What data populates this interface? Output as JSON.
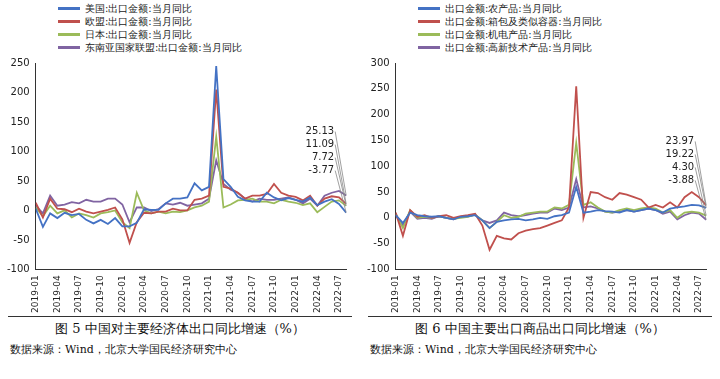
{
  "chart_data": [
    {
      "type": "line",
      "title": "图 5  中国对主要经济体出口同比增速（%）",
      "subtitle": "数据来源：Wind，北京大学国民经济研究中心",
      "categories": [
        "2019-01",
        null,
        null,
        "2019-04",
        null,
        null,
        "2019-07",
        null,
        null,
        "2019-10",
        null,
        null,
        "2020-01",
        null,
        null,
        "2020-04",
        null,
        null,
        "2020-07",
        null,
        null,
        "2020-10",
        null,
        null,
        "2021-01",
        null,
        null,
        "2021-04",
        null,
        null,
        "2021-07",
        null,
        null,
        "2021-10",
        null,
        null,
        "2022-01",
        null,
        null,
        "2022-04",
        null,
        null,
        "2022-07",
        null
      ],
      "series": [
        {
          "name": "美国:出口金额:当月同比",
          "color": "#4472C4",
          "values": [
            3,
            -28,
            -5,
            -13,
            -4,
            -8,
            -6,
            -16,
            -22,
            -16,
            -23,
            -13,
            -27,
            -27,
            -21,
            2,
            1,
            1,
            12,
            20,
            20,
            22,
            46,
            34,
            40,
            245,
            53,
            40,
            23,
            17,
            15,
            15,
            30,
            22,
            17,
            21,
            18,
            15,
            22,
            9,
            15,
            19,
            11,
            -3.77
          ]
        },
        {
          "name": "欧盟:出口金额:当月同比",
          "color": "#C0504D",
          "values": [
            13,
            -12,
            20,
            3,
            2,
            -3,
            3,
            -2,
            -5,
            -2,
            1,
            5,
            -15,
            -55,
            -20,
            -4,
            -5,
            -2,
            -2,
            3,
            0,
            0,
            18,
            20,
            25,
            205,
            40,
            37,
            30,
            20,
            25,
            25,
            28,
            45,
            30,
            25,
            23,
            17,
            25,
            8,
            20,
            24,
            22,
            11.09
          ]
        },
        {
          "name": "日本:出口金额:当月同比",
          "color": "#9BBB59",
          "values": [
            5,
            -10,
            8,
            -5,
            0,
            -12,
            -5,
            -8,
            -12,
            -5,
            -3,
            0,
            -20,
            -30,
            30,
            0,
            -5,
            -2,
            -5,
            -2,
            -3,
            0,
            5,
            8,
            15,
            125,
            5,
            10,
            17,
            18,
            20,
            15,
            15,
            12,
            18,
            15,
            13,
            9,
            12,
            -3,
            6,
            15,
            17,
            7.72
          ]
        },
        {
          "name": "东南亚国家联盟:出口金额:当月同比",
          "color": "#8064A2",
          "values": [
            8,
            -5,
            25,
            8,
            10,
            14,
            12,
            18,
            15,
            15,
            20,
            20,
            10,
            -20,
            5,
            5,
            -1,
            2,
            12,
            10,
            13,
            8,
            10,
            12,
            20,
            85,
            45,
            35,
            30,
            20,
            15,
            20,
            18,
            18,
            20,
            22,
            18,
            12,
            20,
            8,
            25,
            30,
            33,
            25.13
          ]
        }
      ],
      "annotations": [
        {
          "text": "25.13",
          "y": 25.13
        },
        {
          "text": "11.09",
          "y": 11.09
        },
        {
          "text": "7.72",
          "y": 7.72
        },
        {
          "text": "-3.77",
          "y": -3.77
        }
      ],
      "ylim": [
        -100,
        250
      ],
      "yticks": [
        -100,
        -50,
        0,
        50,
        100,
        150,
        200,
        250
      ],
      "grid": false,
      "marker": "none",
      "line_style": "solid"
    },
    {
      "type": "line",
      "title": "图 6  中国主要出口商品出口同比增速（%）",
      "subtitle": "数据来源：Wind，北京大学国民经济研究中心",
      "categories": [
        "2019-01",
        null,
        null,
        "2019-04",
        null,
        null,
        "2019-07",
        null,
        null,
        "2019-10",
        null,
        null,
        "2020-01",
        null,
        null,
        "2020-04",
        null,
        null,
        "2020-07",
        null,
        null,
        "2020-10",
        null,
        null,
        "2021-01",
        null,
        null,
        "2021-04",
        null,
        null,
        "2021-07",
        null,
        null,
        "2021-10",
        null,
        null,
        "2022-01",
        null,
        null,
        "2022-04",
        null,
        null,
        "2022-07",
        null
      ],
      "series": [
        {
          "name": "出口金额:农产品:当月同比",
          "color": "#4472C4",
          "values": [
            5,
            -10,
            10,
            5,
            3,
            2,
            3,
            0,
            -3,
            2,
            3,
            5,
            -5,
            -20,
            -8,
            -5,
            -3,
            -2,
            -5,
            -3,
            0,
            -2,
            3,
            5,
            10,
            60,
            10,
            12,
            15,
            13,
            12,
            10,
            15,
            12,
            15,
            18,
            15,
            10,
            18,
            20,
            22,
            25,
            24,
            19.22
          ]
        },
        {
          "name": "出口金额:箱包及类似容器:当月同比",
          "color": "#C0504D",
          "values": [
            10,
            -35,
            15,
            2,
            5,
            0,
            3,
            5,
            0,
            3,
            5,
            8,
            -15,
            -62,
            -35,
            -40,
            -42,
            -30,
            -25,
            -22,
            -20,
            -15,
            -10,
            -5,
            20,
            255,
            0,
            50,
            48,
            40,
            35,
            48,
            45,
            40,
            35,
            20,
            25,
            20,
            30,
            20,
            40,
            50,
            40,
            23.97
          ]
        },
        {
          "name": "出口金额:机电产品:当月同比",
          "color": "#9BBB59",
          "values": [
            8,
            -20,
            15,
            0,
            2,
            0,
            3,
            0,
            -2,
            0,
            2,
            6,
            -5,
            -20,
            -8,
            5,
            0,
            2,
            8,
            10,
            12,
            12,
            20,
            18,
            25,
            145,
            25,
            30,
            20,
            12,
            10,
            15,
            18,
            15,
            18,
            20,
            18,
            10,
            15,
            0,
            10,
            12,
            10,
            4.3
          ]
        },
        {
          "name": "出口金额:高新技术产品:当月同比",
          "color": "#8064A2",
          "values": [
            5,
            -15,
            12,
            -2,
            0,
            -2,
            3,
            0,
            -3,
            2,
            3,
            6,
            -5,
            -10,
            -5,
            10,
            5,
            3,
            5,
            8,
            10,
            10,
            18,
            15,
            20,
            75,
            20,
            22,
            18,
            12,
            10,
            12,
            15,
            12,
            15,
            18,
            15,
            8,
            12,
            -3,
            5,
            10,
            8,
            -3.88
          ]
        }
      ],
      "annotations": [
        {
          "text": "23.97",
          "y": 23.97
        },
        {
          "text": "19.22",
          "y": 19.22
        },
        {
          "text": "4.30",
          "y": 4.3
        },
        {
          "text": "-3.88",
          "y": -3.88
        }
      ],
      "ylim": [
        -100,
        300
      ],
      "yticks": [
        -100,
        -50,
        0,
        50,
        100,
        150,
        200,
        250,
        300
      ],
      "grid": false,
      "marker": "none",
      "line_style": "solid"
    }
  ]
}
